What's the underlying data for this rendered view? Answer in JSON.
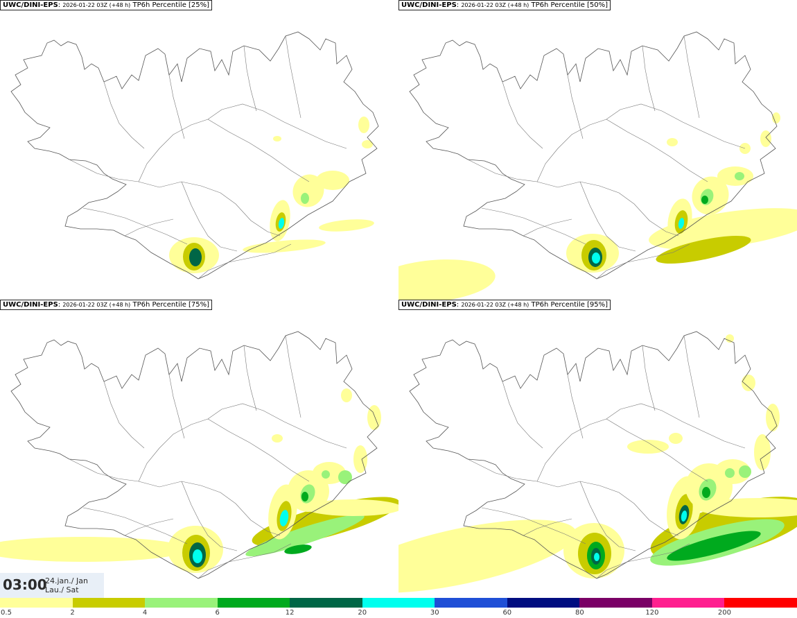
{
  "panels": [
    {
      "model": "UWC/DINI-EPS",
      "run": "2026-01-22 03Z (+48 h)",
      "product": "TP6h Percentile [25%]",
      "percentile": 25
    },
    {
      "model": "UWC/DINI-EPS",
      "run": "2026-01-22 03Z (+48 h)",
      "product": "TP6h Percentile [50%]",
      "percentile": 50
    },
    {
      "model": "UWC/DINI-EPS",
      "run": "2026-01-22 03Z (+48 h)",
      "product": "TP6h Percentile [75%]",
      "percentile": 75
    },
    {
      "model": "UWC/DINI-EPS",
      "run": "2026-01-22 03Z (+48 h)",
      "product": "TP6h Percentile [95%]",
      "percentile": 95
    }
  ],
  "valid_time": {
    "time": "03:00",
    "date": "24.jan./ Jan",
    "day": "Lau./ Sat"
  },
  "legend": {
    "ticks": [
      "0.5",
      "2",
      "4",
      "6",
      "12",
      "20",
      "30",
      "60",
      "80",
      "120",
      "200"
    ],
    "colors": [
      "#ffff99",
      "#c8cc00",
      "#99f27a",
      "#00aa1e",
      "#006646",
      "#00ffee",
      "#1f4fd6",
      "#000d80",
      "#7a0066",
      "#ff1f8f",
      "#ff0000"
    ]
  }
}
